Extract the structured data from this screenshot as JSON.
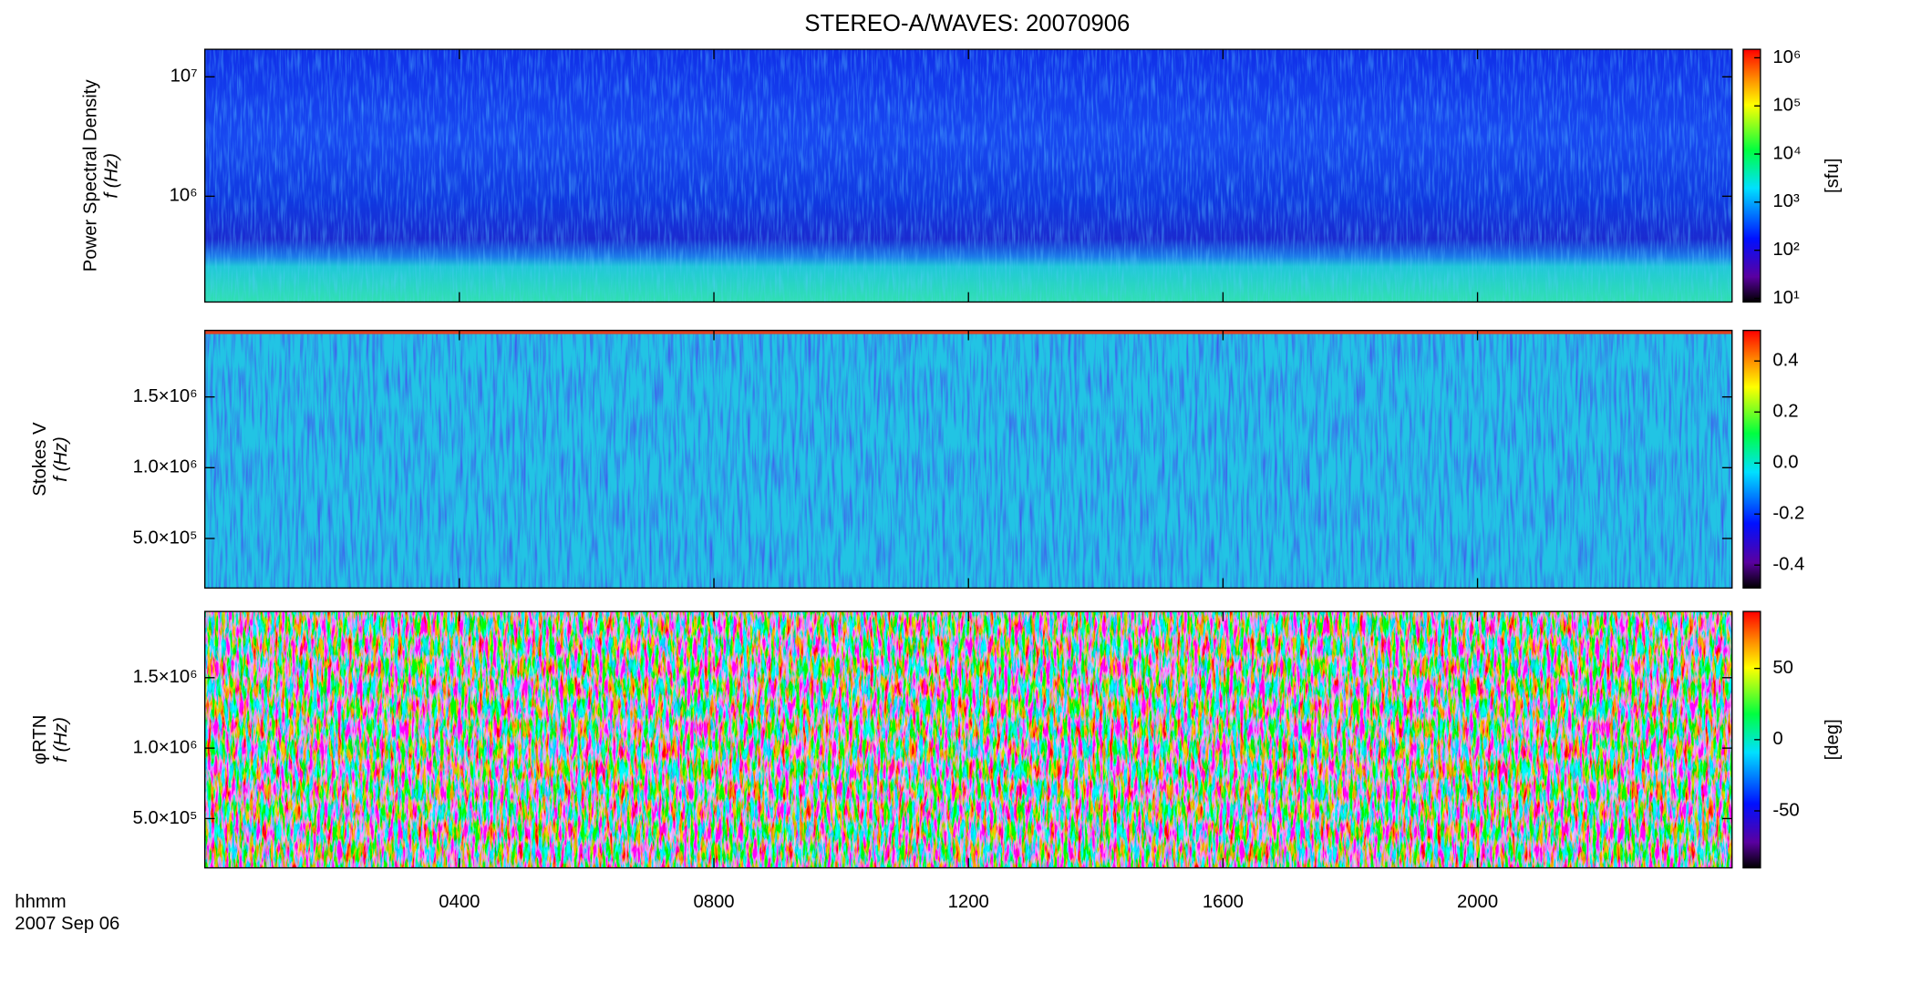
{
  "chart_data": [
    {
      "type": "heatmap",
      "title": "STEREO-A/WAVES: 20070906",
      "ylabel": "Power Spectral Density",
      "ylabel2": "f (Hz)",
      "ylog": true,
      "ylim": [
        130000,
        17000000
      ],
      "yticks": [
        {
          "value": 1000000,
          "label": "10⁶"
        },
        {
          "value": 10000000,
          "label": "10⁷"
        }
      ],
      "clog": true,
      "clim": [
        8.4,
        1500000
      ],
      "cticks": [
        {
          "value": 10,
          "label": "10¹"
        },
        {
          "value": 100,
          "label": "10²"
        },
        {
          "value": 1000,
          "label": "10³"
        },
        {
          "value": 10000,
          "label": "10⁴"
        },
        {
          "value": 100000,
          "label": "10⁵"
        },
        {
          "value": 1000000,
          "label": "10⁶"
        }
      ],
      "clabel": "[sfu]"
    },
    {
      "type": "heatmap",
      "ylabel": "Stokes V",
      "ylabel2": "f (Hz)",
      "ylog": false,
      "ylim": [
        150000,
        1970000
      ],
      "yticks": [
        {
          "value": 500000,
          "label": "5.0×10⁵"
        },
        {
          "value": 1000000,
          "label": "1.0×10⁶"
        },
        {
          "value": 1500000,
          "label": "1.5×10⁶"
        }
      ],
      "clog": false,
      "clim": [
        -0.49,
        0.52
      ],
      "cticks": [
        {
          "value": -0.4,
          "label": "-0.4"
        },
        {
          "value": -0.2,
          "label": "-0.2"
        },
        {
          "value": 0.0,
          "label": "0.0"
        },
        {
          "value": 0.2,
          "label": "0.2"
        },
        {
          "value": 0.4,
          "label": "0.4"
        }
      ]
    },
    {
      "type": "heatmap",
      "ylabel": "φRTN",
      "ylabel2": "f (Hz)",
      "ylog": false,
      "ylim": [
        150000,
        1970000
      ],
      "yticks": [
        {
          "value": 500000,
          "label": "5.0×10⁵"
        },
        {
          "value": 1000000,
          "label": "1.0×10⁶"
        },
        {
          "value": 1500000,
          "label": "1.5×10⁶"
        }
      ],
      "clog": false,
      "clim": [
        -90,
        90
      ],
      "cticks": [
        -50,
        0,
        50
      ],
      "clabel": "[deg]",
      "xlabel": "hhmm",
      "xlabel2": "2007 Sep 06",
      "xlim": [
        0,
        24
      ],
      "xticks": [
        {
          "value": 4,
          "label": "0400"
        },
        {
          "value": 8,
          "label": "0800"
        },
        {
          "value": 12,
          "label": "1200"
        },
        {
          "value": 16,
          "label": "1600"
        },
        {
          "value": 20,
          "label": "2000"
        }
      ]
    }
  ]
}
